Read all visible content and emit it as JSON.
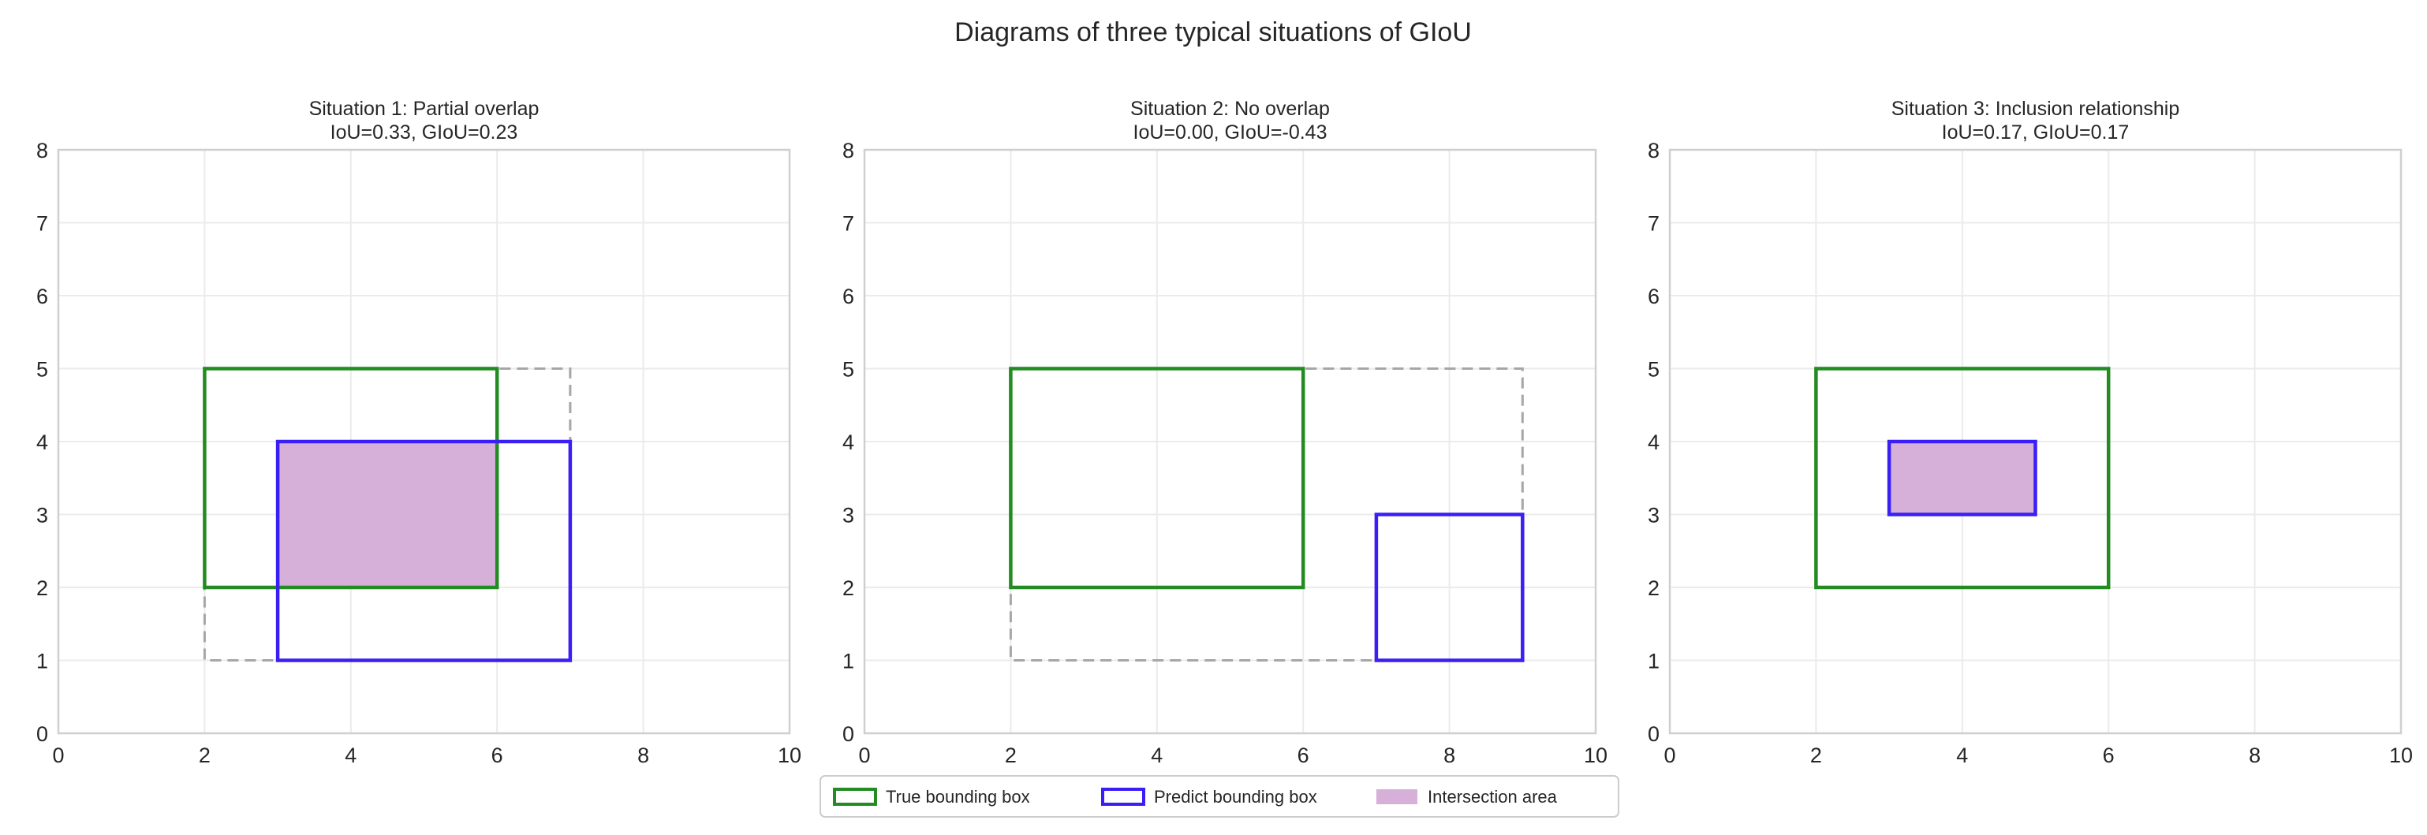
{
  "figure": {
    "title": "Diagrams of three typical situations of GIoU"
  },
  "legend": {
    "placement": "bottom-center",
    "items": [
      {
        "label": "True bounding box",
        "kind": "outline",
        "color": "#228b22"
      },
      {
        "label": "Predict bounding box",
        "kind": "outline",
        "color": "#3a1ff5"
      },
      {
        "label": "Intersection area",
        "kind": "fill",
        "color": "#d6b0d8"
      }
    ]
  },
  "colors": {
    "true_box": "#228b22",
    "pred_box": "#3a1ff5",
    "enclosing_box": "#a6a6a6",
    "intersection_fill": "#d6b0d8",
    "grid": "#ebebeb",
    "axes_frame": "#cfcfcf"
  },
  "chart_data": [
    {
      "type": "diagram",
      "title_line1": "Situation 1: Partial overlap",
      "title_line2": "IoU=0.33, GIoU=0.23",
      "xlim": [
        0,
        10
      ],
      "ylim": [
        0,
        8
      ],
      "xticks": [
        "0",
        "2",
        "4",
        "6",
        "8",
        "10"
      ],
      "yticks": [
        "0",
        "1",
        "2",
        "3",
        "4",
        "5",
        "6",
        "7",
        "8"
      ],
      "grid": true,
      "true_box": {
        "x1": 2,
        "y1": 2,
        "x2": 6,
        "y2": 5
      },
      "pred_box": {
        "x1": 3,
        "y1": 1,
        "x2": 7,
        "y2": 4
      },
      "enclosing_box": {
        "x1": 2,
        "y1": 1,
        "x2": 7,
        "y2": 5
      },
      "intersection": {
        "x1": 3,
        "y1": 2,
        "x2": 6,
        "y2": 4
      }
    },
    {
      "type": "diagram",
      "title_line1": "Situation 2: No overlap",
      "title_line2": "IoU=0.00, GIoU=-0.43",
      "xlim": [
        0,
        10
      ],
      "ylim": [
        0,
        8
      ],
      "xticks": [
        "0",
        "2",
        "4",
        "6",
        "8",
        "10"
      ],
      "yticks": [
        "0",
        "1",
        "2",
        "3",
        "4",
        "5",
        "6",
        "7",
        "8"
      ],
      "grid": true,
      "true_box": {
        "x1": 2,
        "y1": 2,
        "x2": 6,
        "y2": 5
      },
      "pred_box": {
        "x1": 7,
        "y1": 1,
        "x2": 9,
        "y2": 3
      },
      "enclosing_box": {
        "x1": 2,
        "y1": 1,
        "x2": 9,
        "y2": 5
      },
      "intersection": null
    },
    {
      "type": "diagram",
      "title_line1": "Situation 3: Inclusion relationship",
      "title_line2": "IoU=0.17, GIoU=0.17",
      "xlim": [
        0,
        10
      ],
      "ylim": [
        0,
        8
      ],
      "xticks": [
        "0",
        "2",
        "4",
        "6",
        "8",
        "10"
      ],
      "yticks": [
        "0",
        "1",
        "2",
        "3",
        "4",
        "5",
        "6",
        "7",
        "8"
      ],
      "grid": true,
      "true_box": {
        "x1": 2,
        "y1": 2,
        "x2": 6,
        "y2": 5
      },
      "pred_box": {
        "x1": 3,
        "y1": 3,
        "x2": 5,
        "y2": 4
      },
      "enclosing_box": null,
      "intersection": {
        "x1": 3,
        "y1": 3,
        "x2": 5,
        "y2": 4
      }
    }
  ]
}
